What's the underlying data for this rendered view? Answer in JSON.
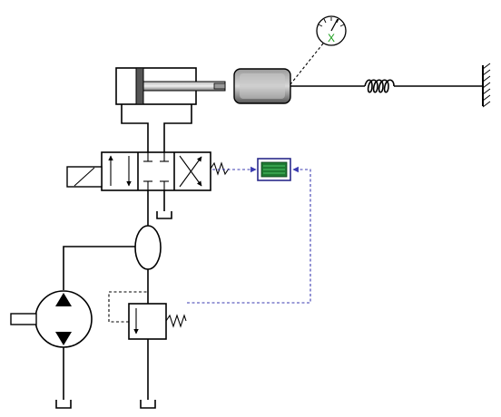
{
  "diagram": {
    "components": [
      {
        "id": "cylinder",
        "label": ""
      },
      {
        "id": "mass",
        "label": ""
      },
      {
        "id": "spring",
        "label": ""
      },
      {
        "id": "wall",
        "label": ""
      },
      {
        "id": "gauge",
        "label": "",
        "symbol": "X"
      },
      {
        "id": "directional-valve",
        "label": ""
      },
      {
        "id": "solenoid",
        "label": ""
      },
      {
        "id": "controller-display",
        "label": ""
      },
      {
        "id": "accumulator",
        "label": ""
      },
      {
        "id": "pump",
        "label": ""
      },
      {
        "id": "relief-valve",
        "label": ""
      },
      {
        "id": "tank",
        "label": ""
      }
    ],
    "colors": {
      "line": "#000000",
      "signal": "#3b3bb0",
      "gauge_mark": "#1a9c1a",
      "display_screen": "#1f7a32",
      "mass_fill": "#5a5a5a"
    }
  }
}
